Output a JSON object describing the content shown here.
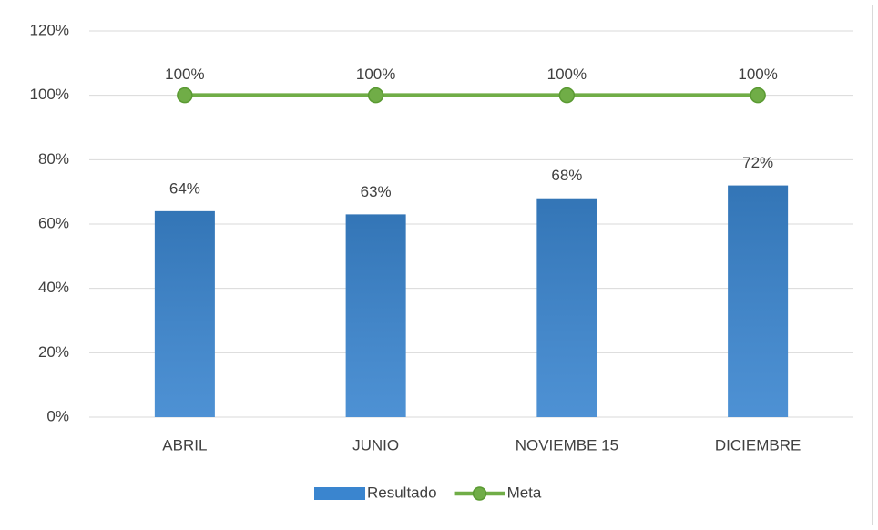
{
  "chart_data": {
    "type": "bar",
    "categories": [
      "ABRIL",
      "JUNIO",
      "NOVIEMBE 15",
      "DICIEMBRE"
    ],
    "series": [
      {
        "name": "Resultado",
        "type": "bar",
        "color": "#3a85cf",
        "values": [
          64,
          63,
          68,
          72
        ],
        "value_labels": [
          "64%",
          "63%",
          "68%",
          "72%"
        ]
      },
      {
        "name": "Meta",
        "type": "line",
        "color": "#70ad47",
        "values": [
          100,
          100,
          100,
          100
        ],
        "value_labels": [
          "100%",
          "100%",
          "100%",
          "100%"
        ]
      }
    ],
    "ylim": [
      0,
      120
    ],
    "yticks": [
      {
        "value": 0,
        "label": "0%"
      },
      {
        "value": 20,
        "label": "20%"
      },
      {
        "value": 40,
        "label": "40%"
      },
      {
        "value": 60,
        "label": "60%"
      },
      {
        "value": 80,
        "label": "80%"
      },
      {
        "value": 100,
        "label": "100%"
      },
      {
        "value": 120,
        "label": "120%"
      }
    ],
    "grid": true,
    "legend": "bottom"
  }
}
